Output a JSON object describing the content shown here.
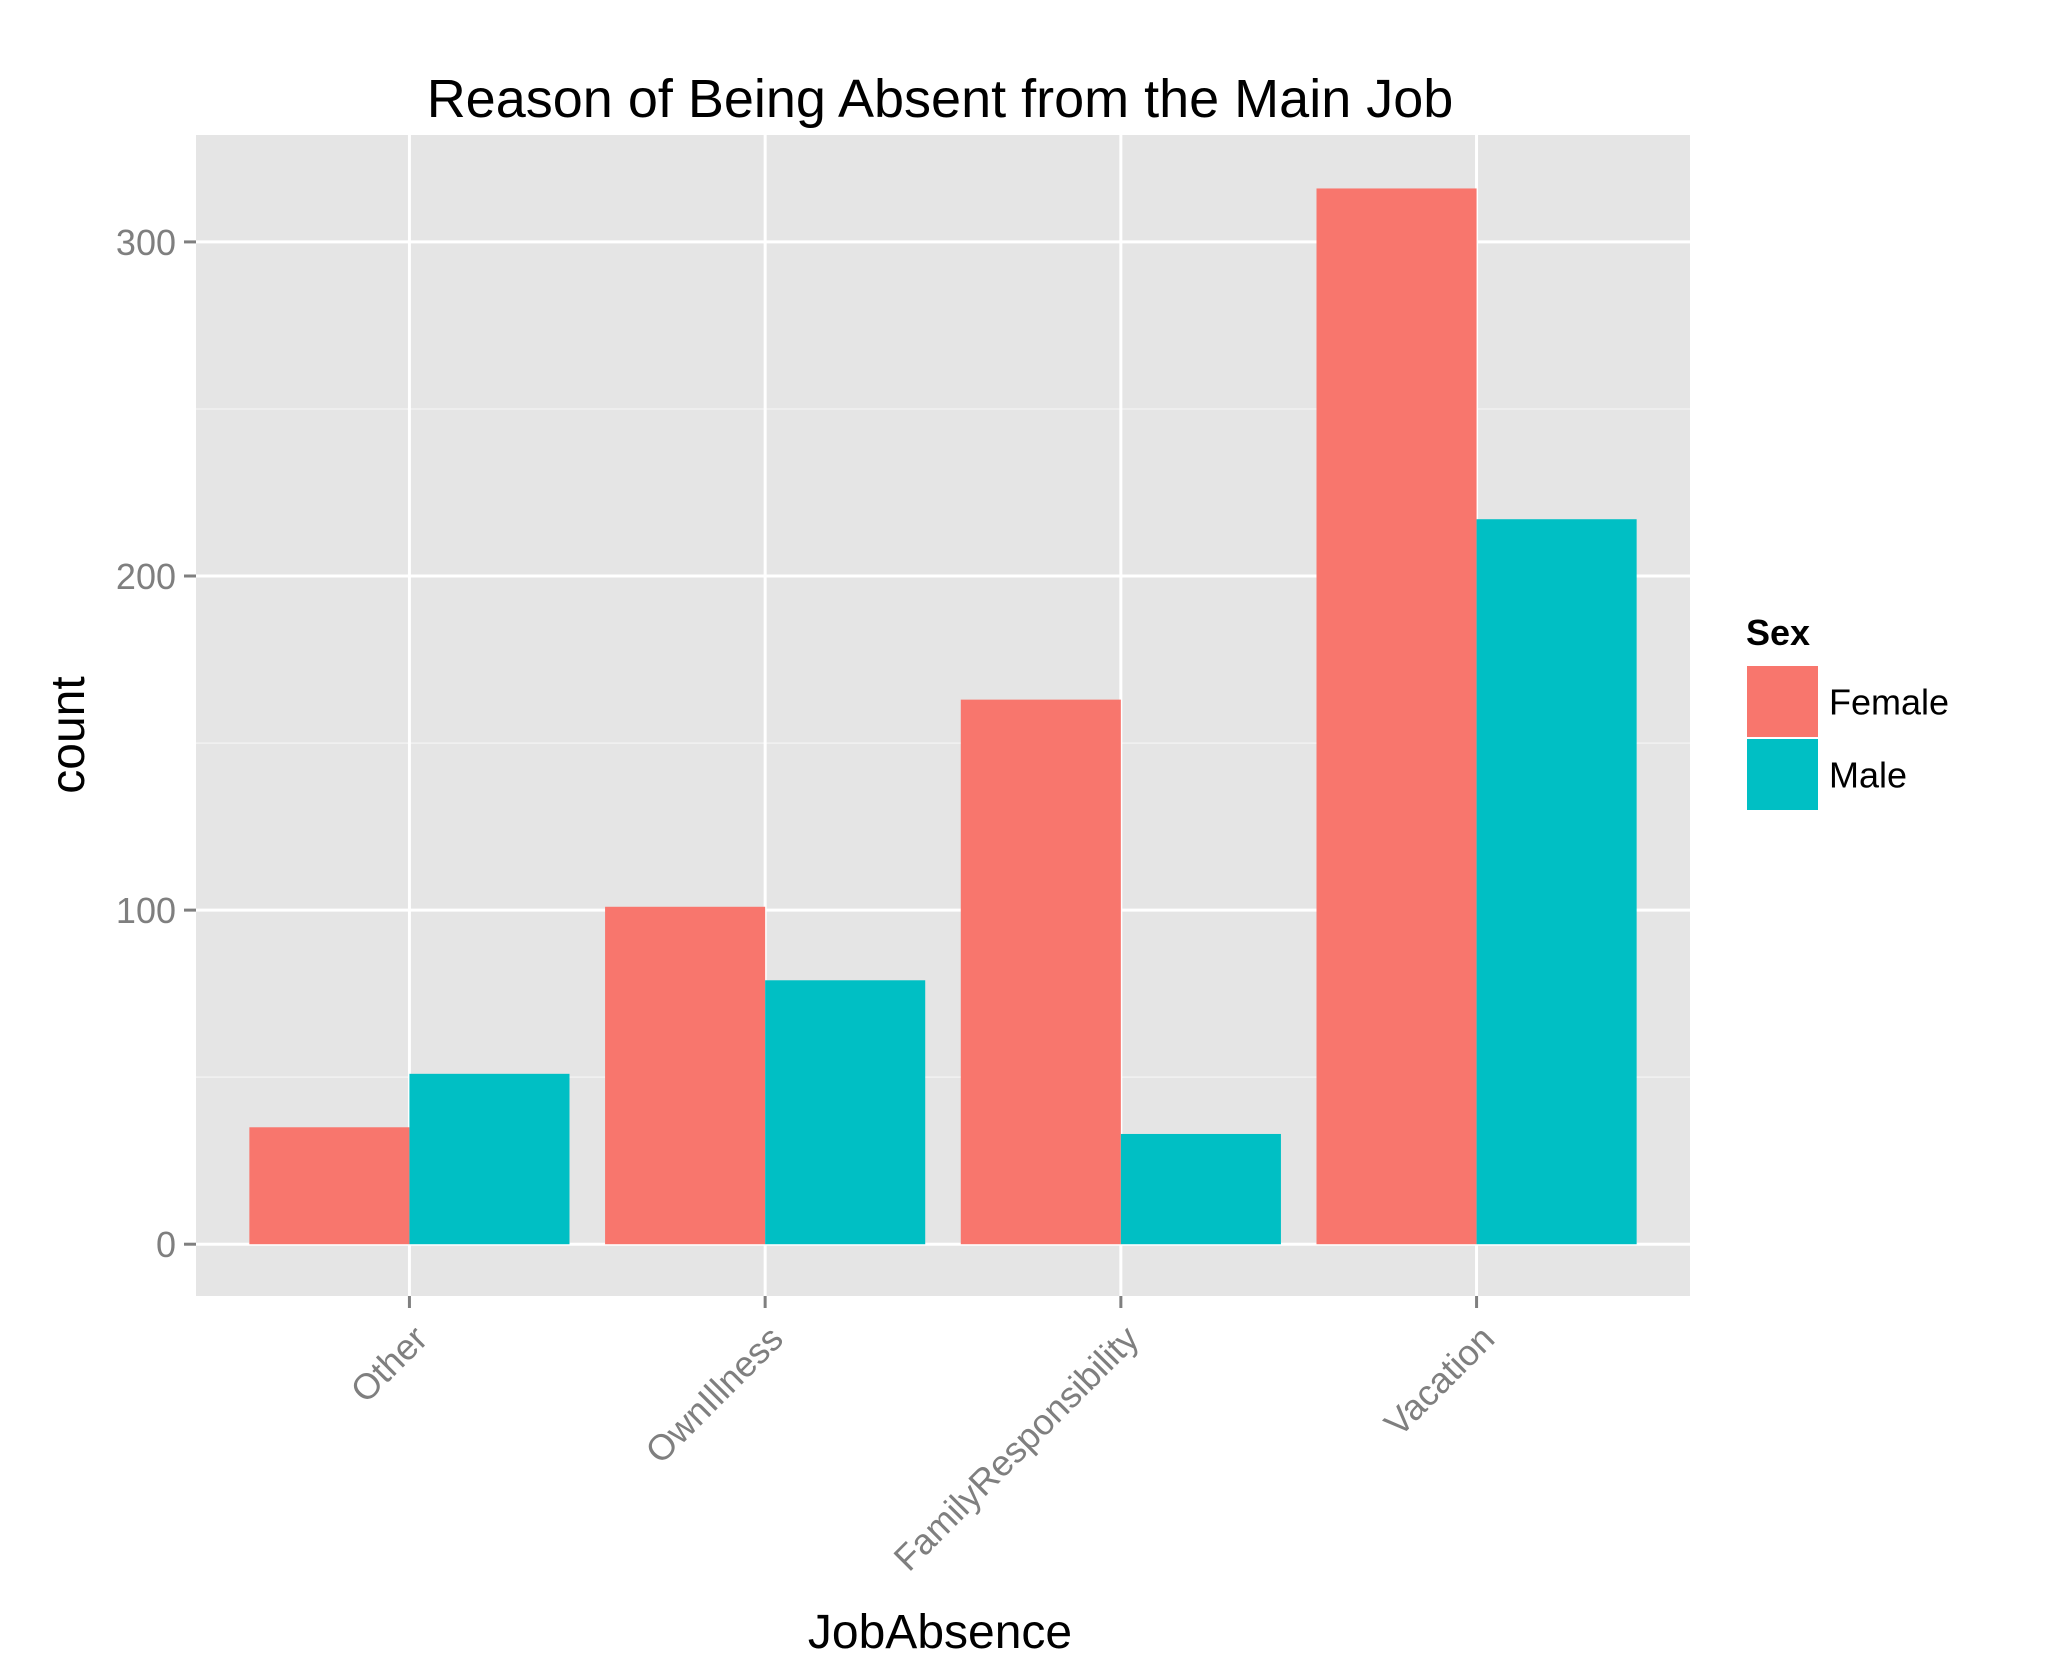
{
  "chart_data": {
    "type": "bar",
    "title": "Reason of Being Absent from the Main Job",
    "xlabel": "JobAbsence",
    "ylabel": "count",
    "categories": [
      "Other",
      "OwnIllness",
      "FamilyResponsibility",
      "Vacation"
    ],
    "series": [
      {
        "name": "Female",
        "values": [
          35,
          101,
          163,
          316
        ]
      },
      {
        "name": "Male",
        "values": [
          51,
          79,
          33,
          217
        ]
      }
    ],
    "ylim": [
      -15.5,
      332
    ],
    "yticks": [
      0,
      100,
      200,
      300
    ],
    "ytick_labels": [
      "0",
      "100",
      "200",
      "300"
    ],
    "legend": {
      "title": "Sex",
      "items": [
        "Female",
        "Male"
      ],
      "placement": "right"
    },
    "grid": true,
    "colors": {
      "Female": "#F8766D",
      "Male": "#00BFC4",
      "panel": "#E5E5E5",
      "grid": "#FFFFFF",
      "tick_label": "#7F7F7F",
      "text": "#000000"
    }
  }
}
